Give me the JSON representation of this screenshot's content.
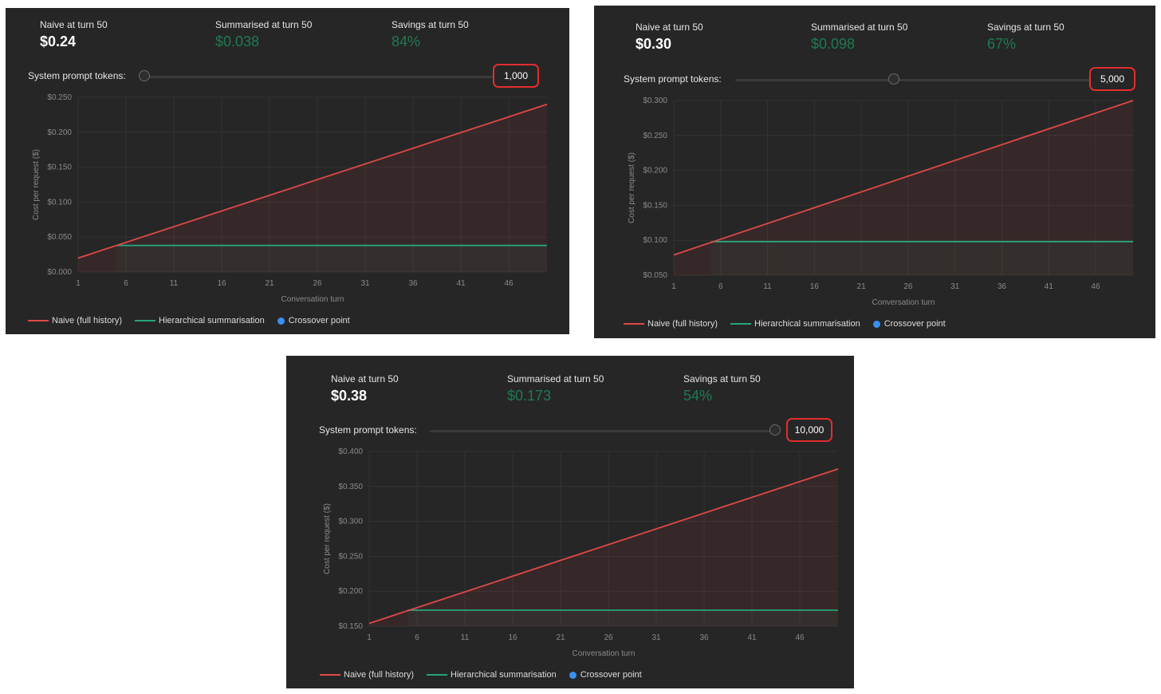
{
  "common": {
    "naive_label": "Naive at turn 50",
    "summ_label": "Summarised at turn 50",
    "savings_label": "Savings at turn 50",
    "slider_label": "System prompt tokens:",
    "legend_naive": "Naive (full history)",
    "legend_summ": "Hierarchical summarisation",
    "legend_cross": "Crossover point",
    "colors": {
      "naive": "#e04848",
      "summ": "#26a37a",
      "cross": "#3b8ff0",
      "value_green": "#1f7a52",
      "highlight": "#e32d2d"
    }
  },
  "panels": [
    {
      "naive": "$0.24",
      "summ": "$0.038",
      "savings": "84%",
      "slider_value": "1,000",
      "slider_fraction": 0.0
    },
    {
      "naive": "$0.30",
      "summ": "$0.098",
      "savings": "67%",
      "slider_value": "5,000",
      "slider_fraction": 0.45
    },
    {
      "naive": "$0.38",
      "summ": "$0.173",
      "savings": "54%",
      "slider_value": "10,000",
      "slider_fraction": 1.0
    }
  ],
  "chart_data": [
    {
      "type": "line",
      "xlabel": "Conversation turn",
      "ylabel": "Cost per request ($)",
      "x_ticks": [
        1,
        6,
        11,
        16,
        21,
        26,
        31,
        36,
        41,
        46
      ],
      "y_ticks": [
        "$0.000",
        "$0.050",
        "$0.100",
        "$0.150",
        "$0.200",
        "$0.250"
      ],
      "ylim": [
        0,
        0.25
      ],
      "xlim": [
        1,
        50
      ],
      "grid": true,
      "series": [
        {
          "name": "Naive (full history)",
          "x": [
            1,
            50
          ],
          "y": [
            0.02,
            0.24
          ]
        },
        {
          "name": "Hierarchical summarisation",
          "x": [
            5,
            50
          ],
          "y": [
            0.038,
            0.038
          ]
        }
      ]
    },
    {
      "type": "line",
      "xlabel": "Conversation turn",
      "ylabel": "Cost per request ($)",
      "x_ticks": [
        1,
        6,
        11,
        16,
        21,
        26,
        31,
        36,
        41,
        46
      ],
      "y_ticks": [
        "$0.050",
        "$0.100",
        "$0.150",
        "$0.200",
        "$0.250",
        "$0.300"
      ],
      "ylim": [
        0.05,
        0.3
      ],
      "xlim": [
        1,
        50
      ],
      "grid": true,
      "series": [
        {
          "name": "Naive (full history)",
          "x": [
            1,
            50
          ],
          "y": [
            0.079,
            0.3
          ]
        },
        {
          "name": "Hierarchical summarisation",
          "x": [
            5,
            50
          ],
          "y": [
            0.098,
            0.098
          ]
        }
      ]
    },
    {
      "type": "line",
      "xlabel": "Conversation turn",
      "ylabel": "Cost per request ($)",
      "x_ticks": [
        1,
        6,
        11,
        16,
        21,
        26,
        31,
        36,
        41,
        46
      ],
      "y_ticks": [
        "$0.150",
        "$0.200",
        "$0.250",
        "$0.300",
        "$0.350",
        "$0.400"
      ],
      "ylim": [
        0.15,
        0.4
      ],
      "xlim": [
        1,
        50
      ],
      "grid": true,
      "series": [
        {
          "name": "Naive (full history)",
          "x": [
            1,
            50
          ],
          "y": [
            0.154,
            0.375
          ]
        },
        {
          "name": "Hierarchical summarisation",
          "x": [
            5,
            50
          ],
          "y": [
            0.173,
            0.173
          ]
        }
      ]
    }
  ]
}
